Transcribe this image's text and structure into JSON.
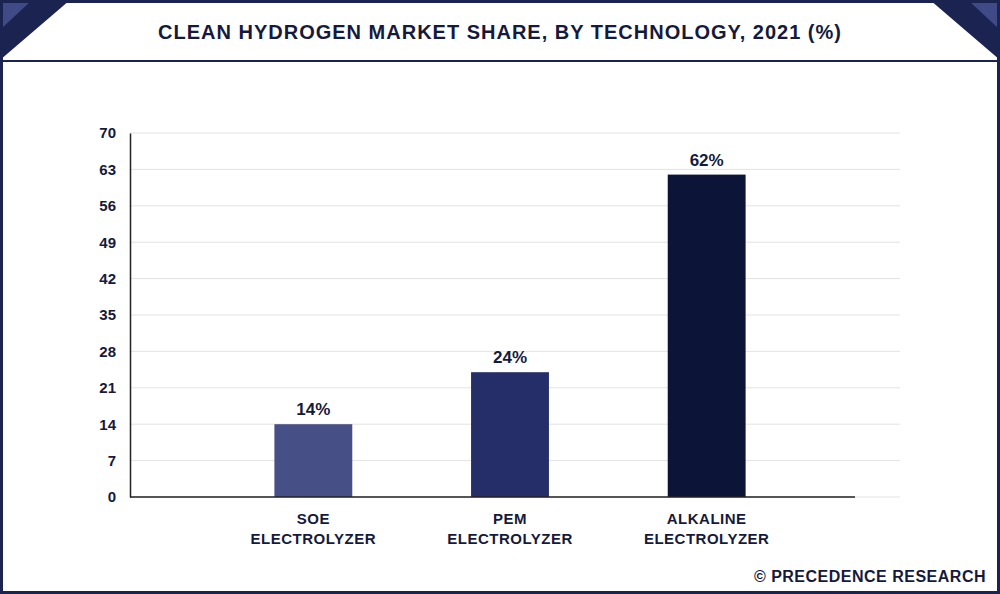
{
  "chart_data": {
    "type": "bar",
    "title": "CLEAN HYDROGEN MARKET SHARE, BY TECHNOLOGY, 2021 (%)",
    "categories": [
      "SOE ELECTROLYZER",
      "PEM ELECTROLYZER",
      "ALKALINE ELECTROLYZER"
    ],
    "values": [
      14,
      24,
      62
    ],
    "value_labels": [
      "14%",
      "24%",
      "62%"
    ],
    "colors": [
      "#474f87",
      "#252e68",
      "#0c1438"
    ],
    "ylim": [
      0,
      70
    ],
    "yticks": [
      0,
      7,
      14,
      21,
      28,
      35,
      42,
      49,
      56,
      63,
      70
    ],
    "grid": true,
    "data_labels": true,
    "annotations": [
      "© PRECEDENCE RESEARCH"
    ]
  }
}
